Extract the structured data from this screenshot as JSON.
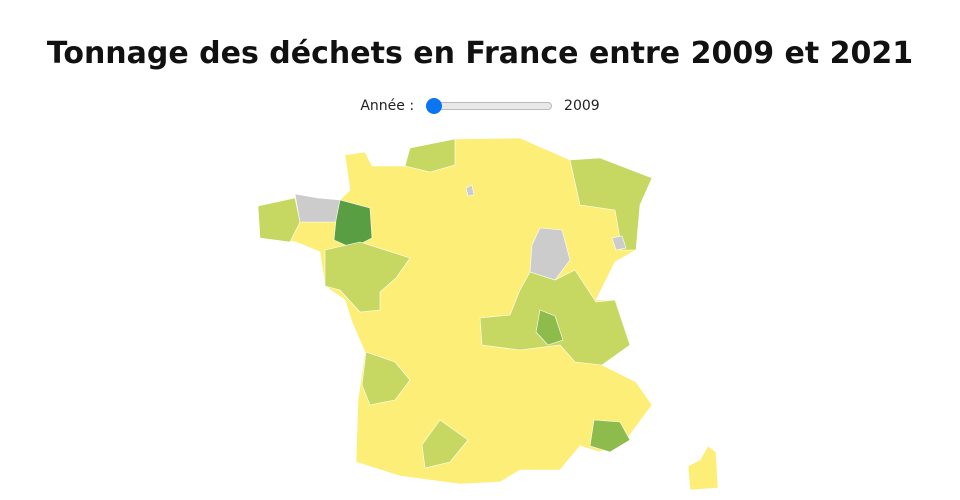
{
  "title": "Tonnage des déchets en France entre 2009 et 2021",
  "slider": {
    "label": "Année :",
    "value": 2009
  }
}
